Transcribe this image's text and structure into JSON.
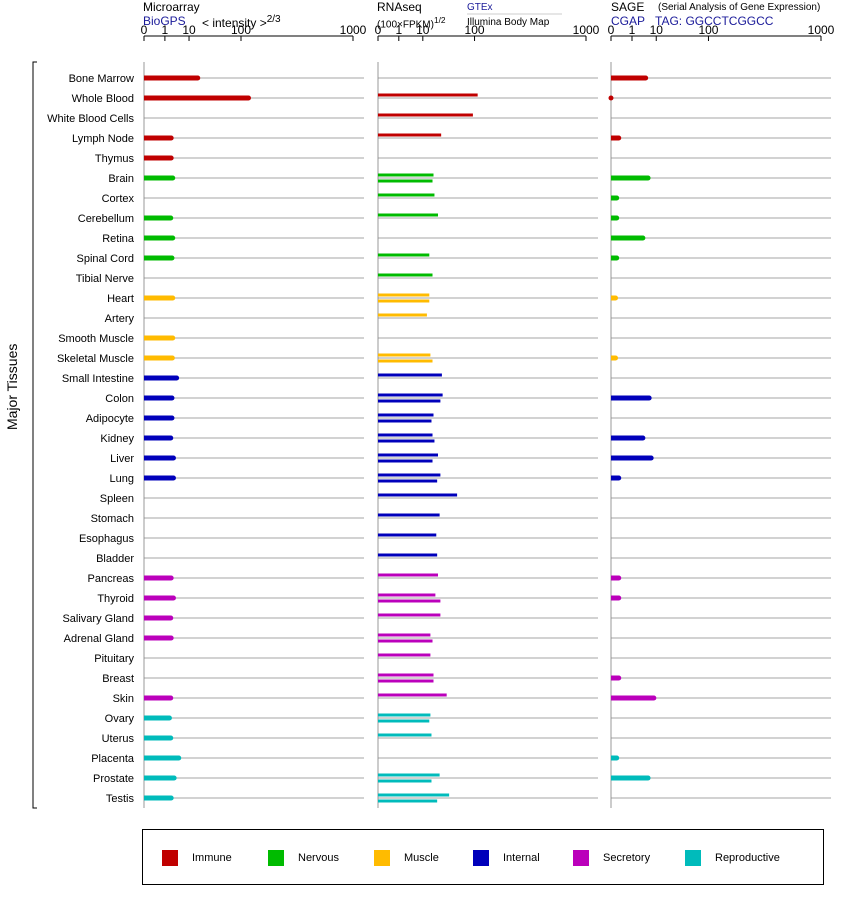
{
  "headers": {
    "microarray": {
      "title": "Microarray",
      "source": "BioGPS",
      "scale": "< intensity >",
      "scale_exp": "2/3"
    },
    "rnaseq": {
      "title": "RNAseq",
      "source": "GTEx",
      "scale": "(100×FPKM)",
      "scale_exp": "1/2",
      "source2": "Illumina Body Map"
    },
    "sage": {
      "title": "SAGE",
      "subtitle": "(Serial Analysis of Gene Expression)",
      "source": "CGAP",
      "tag": "TAG: GGCCTCGGCC"
    }
  },
  "y_axis_label": "Major Tissues",
  "colors": {
    "Immune": "#c00000",
    "Nervous": "#00bb00",
    "Muscle": "#ffbb00",
    "Internal": "#0000bb",
    "Secretory": "#bb00bb",
    "Reproductive": "#00bbbb"
  },
  "chart_data": {
    "type": "bar",
    "scale": "power",
    "tick_labels": [
      "0",
      "1",
      "10",
      "100",
      "1000"
    ],
    "ticks": [
      0,
      1,
      10,
      100,
      1000
    ],
    "xlim": [
      0,
      1000
    ],
    "tissues": [
      {
        "name": "Bone Marrow",
        "group": "Immune",
        "microarray": 17,
        "rnaseq": [],
        "sage": 4.5
      },
      {
        "name": "Whole Blood",
        "group": "Immune",
        "microarray": 125,
        "rnaseq": [
          110
        ],
        "sage": 0
      },
      {
        "name": "White Blood Cells",
        "group": "Immune",
        "microarray": null,
        "rnaseq": [
          95
        ],
        "sage": null
      },
      {
        "name": "Lymph Node",
        "group": "Immune",
        "microarray": 2.2,
        "rnaseq": [
          28
        ],
        "sage": 0.05
      },
      {
        "name": "Thymus",
        "group": "Immune",
        "microarray": 2.2,
        "rnaseq": [],
        "sage": null
      },
      {
        "name": "Brain",
        "group": "Nervous",
        "microarray": 2.6,
        "rnaseq": [
          19,
          18
        ],
        "sage": 5.5
      },
      {
        "name": "Cortex",
        "group": "Nervous",
        "microarray": null,
        "rnaseq": [
          20
        ],
        "sage": 0.02
      },
      {
        "name": "Cerebellum",
        "group": "Nervous",
        "microarray": 2.1,
        "rnaseq": [
          24
        ],
        "sage": 0.02
      },
      {
        "name": "Retina",
        "group": "Nervous",
        "microarray": 2.6,
        "rnaseq": [],
        "sage": 3.5
      },
      {
        "name": "Spinal Cord",
        "group": "Nervous",
        "microarray": 2.4,
        "rnaseq": [
          15
        ],
        "sage": 0.02
      },
      {
        "name": "Tibial Nerve",
        "group": "Nervous",
        "microarray": null,
        "rnaseq": [
          18
        ],
        "sage": null
      },
      {
        "name": "Heart",
        "group": "Muscle",
        "microarray": 2.6,
        "rnaseq": [
          15,
          15
        ],
        "sage": 0.01
      },
      {
        "name": "Artery",
        "group": "Muscle",
        "microarray": null,
        "rnaseq": [
          13
        ],
        "sage": null
      },
      {
        "name": "Smooth Muscle",
        "group": "Muscle",
        "microarray": 2.6,
        "rnaseq": [],
        "sage": null
      },
      {
        "name": "Skeletal Muscle",
        "group": "Muscle",
        "microarray": 2.5,
        "rnaseq": [
          16,
          18
        ],
        "sage": 0.01
      },
      {
        "name": "Small Intestine",
        "group": "Internal",
        "microarray": 3.8,
        "rnaseq": [
          29
        ],
        "sage": null
      },
      {
        "name": "Colon",
        "group": "Internal",
        "microarray": 2.4,
        "rnaseq": [
          30,
          27
        ],
        "sage": 6.0
      },
      {
        "name": "Adipocyte",
        "group": "Internal",
        "microarray": 2.4,
        "rnaseq": [
          19,
          17
        ],
        "sage": null
      },
      {
        "name": "Kidney",
        "group": "Internal",
        "microarray": 2.1,
        "rnaseq": [
          18,
          20
        ],
        "sage": 3.5
      },
      {
        "name": "Liver",
        "group": "Internal",
        "microarray": 2.8,
        "rnaseq": [
          24,
          18
        ],
        "sage": 7.0
      },
      {
        "name": "Lung",
        "group": "Internal",
        "microarray": 2.8,
        "rnaseq": [
          27,
          23
        ],
        "sage": 0.05
      },
      {
        "name": "Spleen",
        "group": "Internal",
        "microarray": null,
        "rnaseq": [
          55
        ],
        "sage": null
      },
      {
        "name": "Stomach",
        "group": "Internal",
        "microarray": null,
        "rnaseq": [
          26
        ],
        "sage": null
      },
      {
        "name": "Esophagus",
        "group": "Internal",
        "microarray": null,
        "rnaseq": [
          22
        ],
        "sage": null
      },
      {
        "name": "Bladder",
        "group": "Internal",
        "microarray": null,
        "rnaseq": [
          23
        ],
        "sage": null
      },
      {
        "name": "Pancreas",
        "group": "Secretory",
        "microarray": 2.2,
        "rnaseq": [
          24
        ],
        "sage": 0.05
      },
      {
        "name": "Thyroid",
        "group": "Secretory",
        "microarray": 2.8,
        "rnaseq": [
          21,
          27
        ],
        "sage": 0.05
      },
      {
        "name": "Salivary Gland",
        "group": "Secretory",
        "microarray": 2.1,
        "rnaseq": [
          27
        ],
        "sage": null
      },
      {
        "name": "Adrenal Gland",
        "group": "Secretory",
        "microarray": 2.2,
        "rnaseq": [
          16,
          18
        ],
        "sage": null
      },
      {
        "name": "Pituitary",
        "group": "Secretory",
        "microarray": null,
        "rnaseq": [
          16
        ],
        "sage": null
      },
      {
        "name": "Breast",
        "group": "Secretory",
        "microarray": null,
        "rnaseq": [
          19,
          19
        ],
        "sage": 0.05
      },
      {
        "name": "Skin",
        "group": "Secretory",
        "microarray": 2.1,
        "rnaseq": [
          36
        ],
        "sage": 8.5
      },
      {
        "name": "Ovary",
        "group": "Reproductive",
        "microarray": 1.8,
        "rnaseq": [
          16,
          15
        ],
        "sage": null
      },
      {
        "name": "Uterus",
        "group": "Reproductive",
        "microarray": 2.1,
        "rnaseq": [
          17
        ],
        "sage": null
      },
      {
        "name": "Placenta",
        "group": "Reproductive",
        "microarray": 4.6,
        "rnaseq": [],
        "sage": 0.02
      },
      {
        "name": "Prostate",
        "group": "Reproductive",
        "microarray": 3.0,
        "rnaseq": [
          26,
          17
        ],
        "sage": 5.5
      },
      {
        "name": "Testis",
        "group": "Reproductive",
        "microarray": 2.2,
        "rnaseq": [
          40,
          23
        ],
        "sage": null
      }
    ]
  },
  "legend": [
    "Immune",
    "Nervous",
    "Muscle",
    "Internal",
    "Secretory",
    "Reproductive"
  ]
}
